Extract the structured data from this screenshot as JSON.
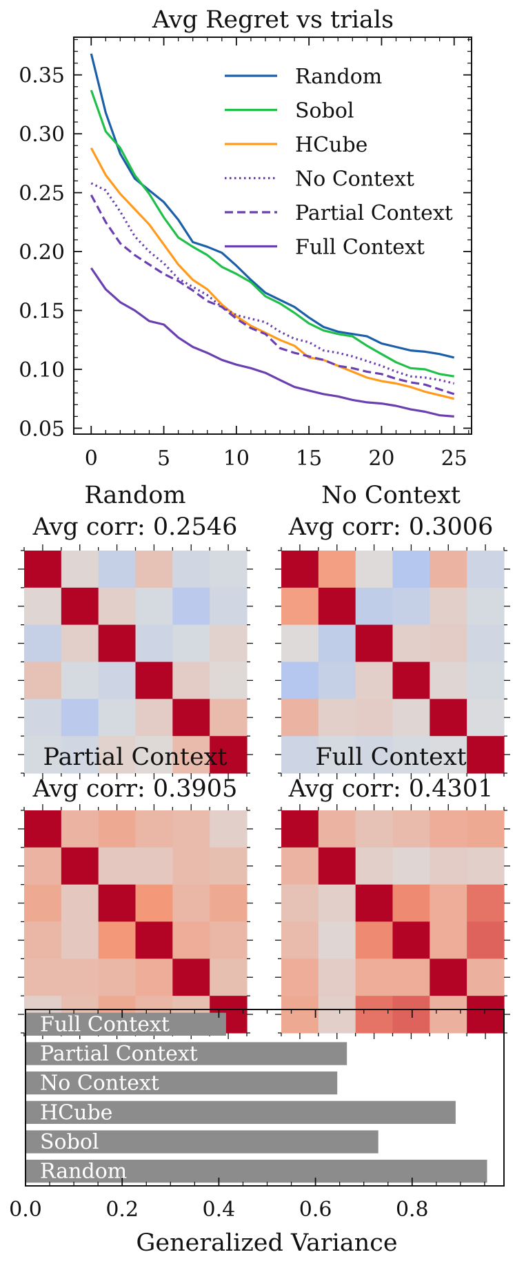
{
  "figure": {
    "background": "#ffffff",
    "axis_color": "#111111",
    "bar_color": "#8c8c8c"
  },
  "chart_data": [
    {
      "type": "line",
      "title": "Avg Regret vs trials",
      "xlabel": "",
      "ylabel": "",
      "xlim": [
        -1.2,
        26.2
      ],
      "ylim": [
        0.045,
        0.382
      ],
      "xticks": [
        0,
        5,
        10,
        15,
        20,
        25
      ],
      "xtick_labels": [
        "0",
        "5",
        "10",
        "15",
        "20",
        "25"
      ],
      "yticks": [
        0.05,
        0.1,
        0.15,
        0.2,
        0.25,
        0.3,
        0.35
      ],
      "ytick_labels": [
        "0.05",
        "0.10",
        "0.15",
        "0.20",
        "0.25",
        "0.30",
        "0.35"
      ],
      "legend_position": "top-right",
      "x": [
        0,
        1,
        2,
        3,
        4,
        5,
        6,
        7,
        8,
        9,
        10,
        11,
        12,
        13,
        14,
        15,
        16,
        17,
        18,
        19,
        20,
        21,
        22,
        23,
        24,
        25
      ],
      "series": [
        {
          "name": "Random",
          "color": "#1a5fa8",
          "style": "solid",
          "values": [
            0.368,
            0.318,
            0.283,
            0.262,
            0.252,
            0.242,
            0.227,
            0.208,
            0.204,
            0.199,
            0.188,
            0.176,
            0.165,
            0.159,
            0.153,
            0.144,
            0.136,
            0.132,
            0.13,
            0.128,
            0.122,
            0.119,
            0.116,
            0.115,
            0.113,
            0.11
          ]
        },
        {
          "name": "Sobol",
          "color": "#1fbf4a",
          "style": "solid",
          "values": [
            0.337,
            0.302,
            0.288,
            0.265,
            0.249,
            0.229,
            0.212,
            0.204,
            0.197,
            0.187,
            0.181,
            0.174,
            0.162,
            0.156,
            0.148,
            0.139,
            0.133,
            0.13,
            0.128,
            0.12,
            0.113,
            0.106,
            0.101,
            0.1,
            0.096,
            0.094
          ]
        },
        {
          "name": "HCube",
          "color": "#ff9a1a",
          "style": "solid",
          "values": [
            0.288,
            0.265,
            0.249,
            0.236,
            0.223,
            0.206,
            0.189,
            0.176,
            0.168,
            0.155,
            0.145,
            0.137,
            0.131,
            0.125,
            0.12,
            0.11,
            0.108,
            0.103,
            0.098,
            0.093,
            0.09,
            0.088,
            0.085,
            0.081,
            0.078,
            0.075
          ]
        },
        {
          "name": "No Context",
          "color": "#6a3fb0",
          "style": "dotted",
          "values": [
            0.258,
            0.252,
            0.234,
            0.213,
            0.2,
            0.19,
            0.177,
            0.17,
            0.163,
            0.153,
            0.146,
            0.143,
            0.14,
            0.132,
            0.126,
            0.123,
            0.116,
            0.114,
            0.111,
            0.107,
            0.103,
            0.098,
            0.094,
            0.093,
            0.091,
            0.088
          ]
        },
        {
          "name": "Partial Context",
          "color": "#6a3fb0",
          "style": "dashed",
          "values": [
            0.248,
            0.225,
            0.207,
            0.197,
            0.189,
            0.181,
            0.175,
            0.167,
            0.158,
            0.153,
            0.143,
            0.135,
            0.13,
            0.118,
            0.114,
            0.111,
            0.108,
            0.103,
            0.101,
            0.098,
            0.096,
            0.092,
            0.089,
            0.087,
            0.083,
            0.079
          ]
        },
        {
          "name": "Full Context",
          "color": "#6a3fb0",
          "style": "solid",
          "values": [
            0.186,
            0.168,
            0.157,
            0.15,
            0.141,
            0.138,
            0.127,
            0.119,
            0.114,
            0.108,
            0.104,
            0.101,
            0.097,
            0.091,
            0.085,
            0.082,
            0.079,
            0.077,
            0.074,
            0.072,
            0.071,
            0.069,
            0.066,
            0.064,
            0.061,
            0.06
          ]
        }
      ]
    },
    {
      "type": "heatmap",
      "title": "Random",
      "subtitle": "Avg corr: 0.2546",
      "colormap": "coolwarm",
      "vmin": -1,
      "vmax": 1,
      "matrix": [
        [
          1.0,
          0.05,
          -0.15,
          0.2,
          -0.08,
          -0.05
        ],
        [
          0.05,
          1.0,
          0.1,
          -0.05,
          -0.22,
          -0.08
        ],
        [
          -0.15,
          0.1,
          1.0,
          -0.1,
          -0.05,
          0.08
        ],
        [
          0.2,
          -0.05,
          -0.1,
          1.0,
          0.12,
          0.03
        ],
        [
          -0.08,
          -0.22,
          -0.05,
          0.12,
          1.0,
          0.25
        ],
        [
          -0.05,
          -0.08,
          0.08,
          0.03,
          0.25,
          1.0
        ]
      ]
    },
    {
      "type": "heatmap",
      "title": "No Context",
      "subtitle": "Avg corr: 0.3006",
      "colormap": "coolwarm",
      "vmin": -1,
      "vmax": 1,
      "matrix": [
        [
          1.0,
          0.45,
          0.02,
          -0.25,
          0.3,
          -0.1
        ],
        [
          0.45,
          1.0,
          -0.18,
          -0.15,
          0.1,
          -0.05
        ],
        [
          0.02,
          -0.18,
          1.0,
          0.1,
          0.12,
          -0.08
        ],
        [
          -0.25,
          -0.15,
          0.1,
          1.0,
          0.05,
          -0.05
        ],
        [
          0.3,
          0.1,
          0.12,
          0.05,
          1.0,
          -0.02
        ],
        [
          -0.1,
          -0.05,
          -0.08,
          -0.05,
          -0.02,
          1.0
        ]
      ]
    },
    {
      "type": "heatmap",
      "title": "Partial Context",
      "subtitle": "Avg corr: 0.3905",
      "colormap": "coolwarm",
      "vmin": -1,
      "vmax": 1,
      "matrix": [
        [
          1.0,
          0.3,
          0.38,
          0.28,
          0.25,
          0.1
        ],
        [
          0.3,
          1.0,
          0.15,
          0.15,
          0.25,
          0.22
        ],
        [
          0.38,
          0.15,
          1.0,
          0.5,
          0.28,
          0.38
        ],
        [
          0.28,
          0.15,
          0.5,
          1.0,
          0.35,
          0.28
        ],
        [
          0.25,
          0.25,
          0.28,
          0.35,
          1.0,
          0.22
        ],
        [
          0.1,
          0.22,
          0.38,
          0.28,
          0.22,
          1.0
        ]
      ]
    },
    {
      "type": "heatmap",
      "title": "Full Context",
      "subtitle": "Avg corr: 0.4301",
      "colormap": "coolwarm",
      "vmin": -1,
      "vmax": 1,
      "matrix": [
        [
          1.0,
          0.3,
          0.2,
          0.25,
          0.35,
          0.38
        ],
        [
          0.3,
          1.0,
          0.1,
          0.05,
          0.12,
          0.1
        ],
        [
          0.2,
          0.1,
          1.0,
          0.55,
          0.35,
          0.62
        ],
        [
          0.25,
          0.05,
          0.55,
          1.0,
          0.35,
          0.68
        ],
        [
          0.35,
          0.12,
          0.35,
          0.35,
          1.0,
          0.32
        ],
        [
          0.38,
          0.1,
          0.62,
          0.68,
          0.32,
          1.0
        ]
      ]
    },
    {
      "type": "bar",
      "orientation": "horizontal",
      "title": "",
      "xlabel": "Generalized Variance",
      "ylabel": "",
      "xlim": [
        0,
        0.99
      ],
      "xticks": [
        0.0,
        0.2,
        0.4,
        0.6,
        0.8
      ],
      "xtick_labels": [
        "0.0",
        "0.2",
        "0.4",
        "0.6",
        "0.8"
      ],
      "categories": [
        "Full Context",
        "Partial Context",
        "No Context",
        "HCube",
        "Sobol",
        "Random"
      ],
      "values": [
        0.415,
        0.665,
        0.645,
        0.89,
        0.73,
        0.955
      ]
    }
  ]
}
